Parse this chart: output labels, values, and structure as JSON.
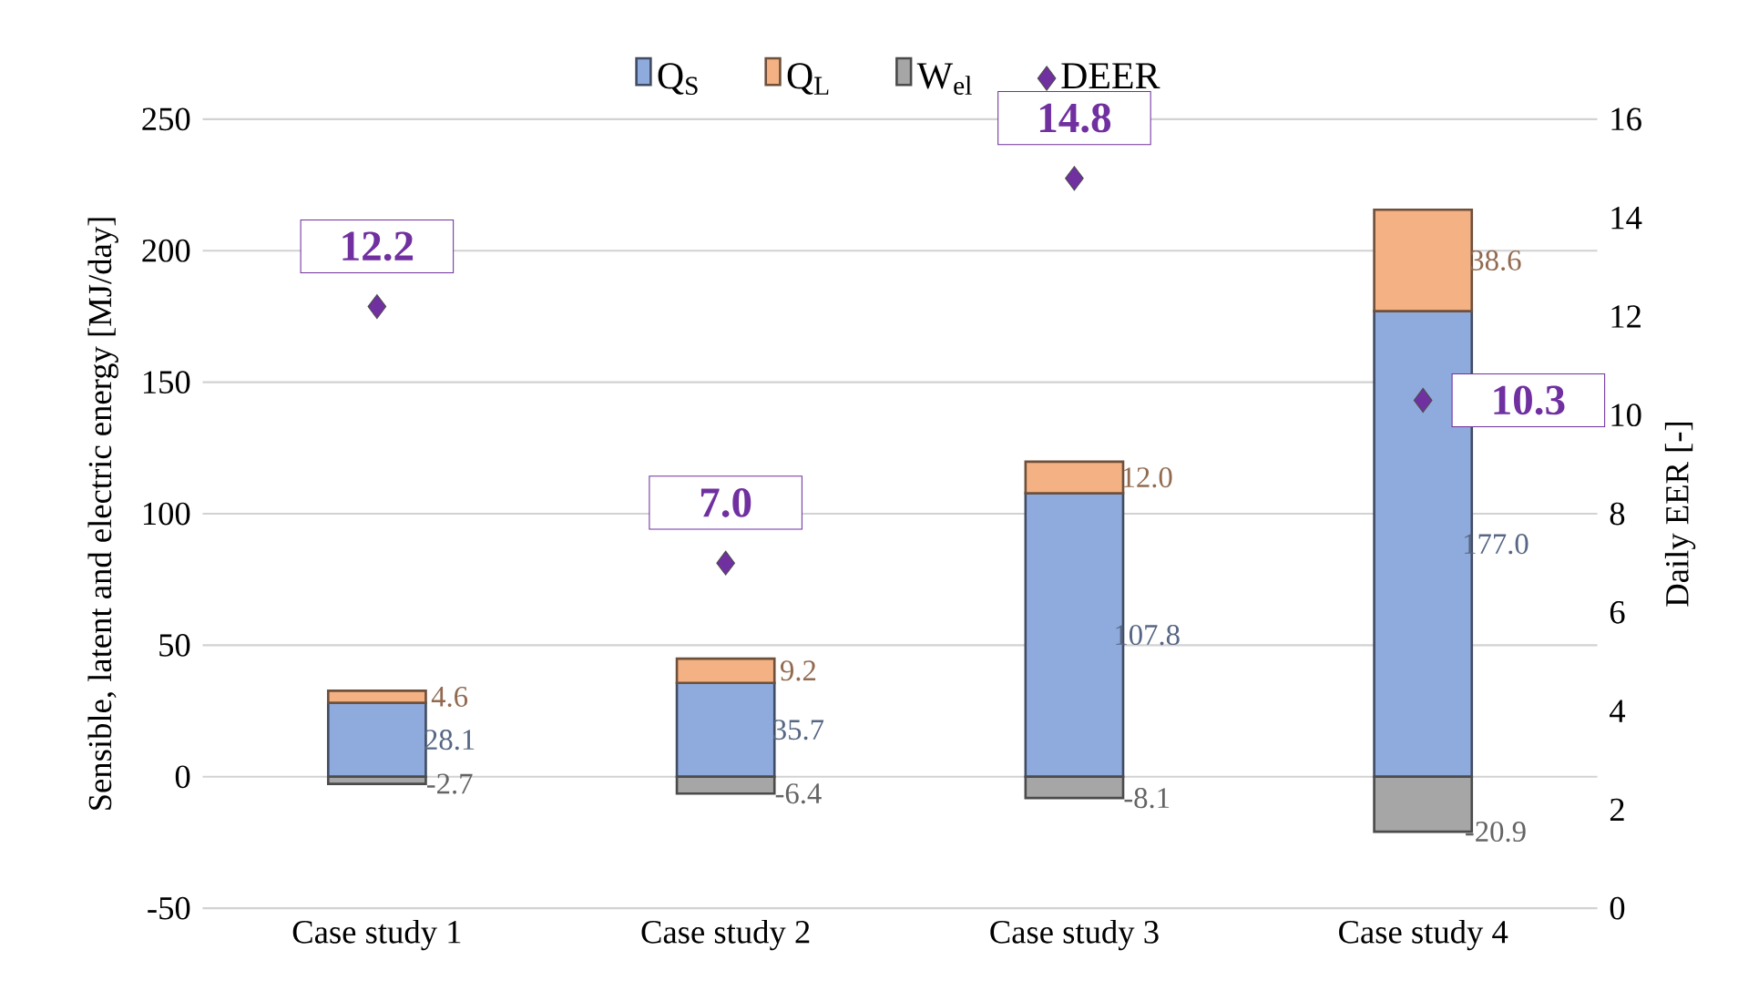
{
  "chart_data": {
    "type": "bar",
    "stacked": true,
    "categories": [
      "Case study 1",
      "Case study 2",
      "Case study 3",
      "Case study 4"
    ],
    "ylabel": "Sensible, latent and electric energy [MJ/day]",
    "y2label": "Daily EER [-]",
    "ylim": [
      -50,
      250
    ],
    "yticks": [
      -50,
      0,
      50,
      100,
      150,
      200,
      250
    ],
    "y2lim": [
      0,
      16
    ],
    "y2ticks": [
      0,
      2,
      4,
      6,
      8,
      10,
      12,
      14,
      16
    ],
    "grid": "y",
    "legend": "top",
    "series": [
      {
        "name": "Q$_{S}$",
        "color": "#8faadc",
        "values": [
          28.1,
          35.7,
          107.8,
          177.0
        ],
        "value_labels": [
          "28.1",
          "35.7",
          "107.8",
          "177.0"
        ]
      },
      {
        "name": "Q$_{L}$",
        "color": "#f4b183",
        "values": [
          4.6,
          9.2,
          12.0,
          38.6
        ],
        "value_labels": [
          "4.6",
          "9.2",
          "12.0",
          "38.6"
        ]
      },
      {
        "name": "W$_{el}$",
        "color": "#a6a6a6",
        "values": [
          -2.7,
          -6.4,
          -8.1,
          -20.9
        ],
        "value_labels": [
          "-2.7",
          "-6.4",
          "-8.1",
          "-20.9"
        ]
      },
      {
        "name": "DEER",
        "type": "scatter",
        "axis": "y2",
        "marker": "diamond",
        "color": "#7030a0",
        "values": [
          12.2,
          7.0,
          14.8,
          10.3
        ],
        "value_labels": [
          "12.2",
          "7.0",
          "14.8",
          "10.3"
        ]
      }
    ]
  }
}
